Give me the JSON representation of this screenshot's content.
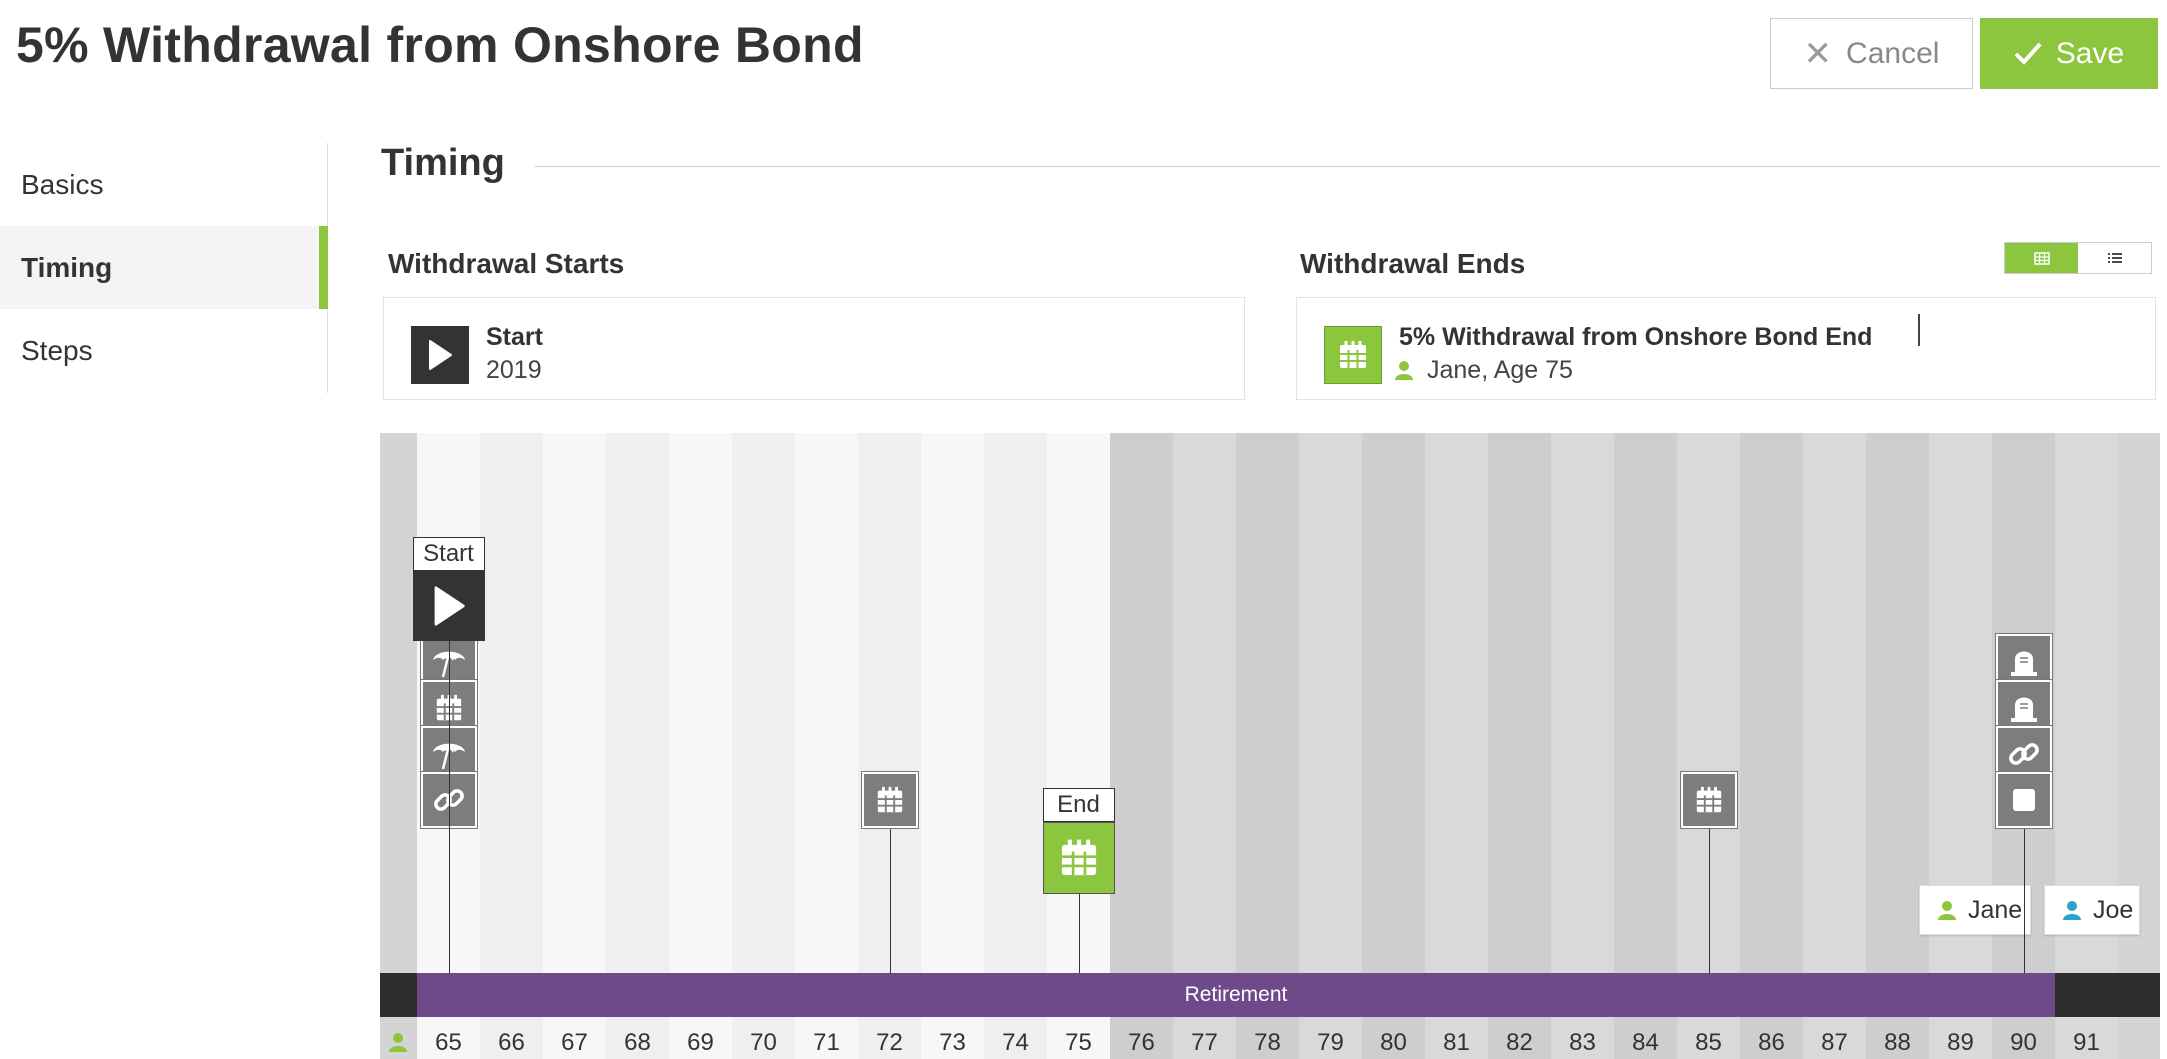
{
  "header": {
    "title": "5% Withdrawal from Onshore Bond",
    "cancel_label": "Cancel",
    "save_label": "Save"
  },
  "sidebar": {
    "items": [
      {
        "label": "Basics",
        "active": false
      },
      {
        "label": "Timing",
        "active": true
      },
      {
        "label": "Steps",
        "active": false
      }
    ]
  },
  "section": {
    "title": "Timing"
  },
  "starts": {
    "label": "Withdrawal Starts",
    "card_title": "Start",
    "card_sub": "2019",
    "icon": "play-icon"
  },
  "ends": {
    "label": "Withdrawal Ends",
    "card_title": "5% Withdrawal from Onshore Bond End",
    "card_sub": "Jane, Age 75",
    "icon": "calendar-icon"
  },
  "view_toggle": {
    "options": [
      "calendar-view-icon",
      "list-view-icon"
    ],
    "selected": "calendar-view-icon"
  },
  "timeline": {
    "ages": [
      "65",
      "66",
      "67",
      "68",
      "69",
      "70",
      "71",
      "72",
      "73",
      "74",
      "75",
      "76",
      "77",
      "78",
      "79",
      "80",
      "81",
      "82",
      "83",
      "84",
      "85",
      "86",
      "87",
      "88",
      "89",
      "90",
      "91"
    ],
    "highlight_range": [
      "65",
      "75"
    ],
    "retirement_label": "Retirement",
    "start_tag": "Start",
    "end_tag": "End",
    "legend": [
      {
        "name": "Jane",
        "color": "#8cc63f"
      },
      {
        "name": "Joe",
        "color": "#29a3c6"
      }
    ],
    "events": [
      {
        "age": "65",
        "icons": [
          "umbrella-icon",
          "calendar-icon",
          "umbrella-icon",
          "link-icon"
        ]
      },
      {
        "age": "72",
        "icons": [
          "calendar-icon"
        ]
      },
      {
        "age": "85",
        "icons": [
          "calendar-icon"
        ]
      },
      {
        "age": "90",
        "icons": [
          "tombstone-icon",
          "tombstone-icon",
          "link-icon",
          "square-icon"
        ]
      }
    ]
  },
  "colors": {
    "accent": "#8cc63f",
    "retirement": "#6f4a8b",
    "dark": "#333333"
  }
}
